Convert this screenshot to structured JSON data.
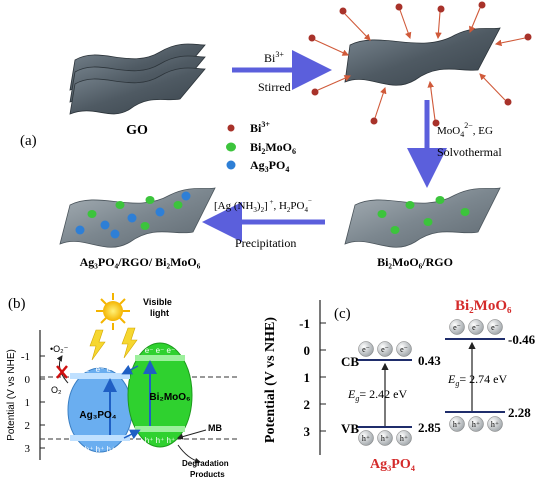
{
  "panel_a": {
    "label": "(a)",
    "go_label": "GO",
    "step1": {
      "reagent": "Bi",
      "reagent_sup": "3+",
      "condition": "Stirred"
    },
    "step2": {
      "reagent_a": "MoO",
      "reagent_a_sub": "4",
      "reagent_a_sup": "2−",
      "reagent_b": ", EG",
      "condition": "Solvothermal"
    },
    "step3": {
      "reagent": "[Ag (NH",
      "reagent_sub": "3",
      "reagent_b": ")",
      "reagent_b_sub": "2",
      "reagent_c": "]",
      "reagent_c_sup": " +",
      "reagent_d": ", H",
      "reagent_d_sub": "2",
      "reagent_e": "PO",
      "reagent_e_sub": "4",
      "reagent_e_sup": "−",
      "condition": "Precipitation"
    },
    "legend": [
      {
        "text": "Bi",
        "sup": "3+",
        "color": "#a8322a"
      },
      {
        "text": "Bi",
        "sub": "2",
        "text2": "MoO",
        "sub2": "6",
        "color": "#3cc43c"
      },
      {
        "text": "Ag",
        "sub": "3",
        "text2": "PO",
        "sub2": "4",
        "color": "#2e7fd6"
      }
    ],
    "product_bi2moo6_rgo": "Bi₂MoO₆/RGO",
    "product_final": "Ag₃PO₄/RGO/ Bi₂MoO₆"
  },
  "panel_b": {
    "label": "(b)",
    "y_axis_label": "Potential (V vs NHE)",
    "ticks": [
      "-1",
      "0",
      "1",
      "2",
      "3"
    ],
    "sun_label_1": "Visible",
    "sun_label_2": "light",
    "superoxide": "•O₂⁻",
    "o2": "O₂",
    "ag3po4": "Ag₃PO₄",
    "bi2moo6": "Bi₂MoO₆",
    "mb": "MB",
    "degradation_1": "Degradation",
    "degradation_2": "Products",
    "electrons": "e⁻ e⁻ e⁻",
    "holes": "h⁺ h⁺ h⁺",
    "colors": {
      "ag3po4": "#6aaef0",
      "bi2moo6": "#2fd12f",
      "arrow": "#1f5fc4"
    }
  },
  "panel_c": {
    "label": "(c)",
    "y_axis_label": "Potential (V vs NHE)",
    "ticks": [
      "-1",
      "0",
      "1",
      "2",
      "3"
    ],
    "cb_label": "CB",
    "vb_label": "VB",
    "ag3po4": {
      "name": "Ag₃PO₄",
      "cb": "0.43",
      "vb": "2.85",
      "eg_label": "E",
      "eg_sub": "g",
      "eg_value": "= 2.42 eV",
      "color": "#d42a2a"
    },
    "bi2moo6": {
      "name": "Bi₂MoO₆",
      "cb": "-0.46",
      "vb": "2.28",
      "eg_label": "E",
      "eg_sub": "g",
      "eg_value": "= 2.74 eV",
      "color": "#d42a2a"
    },
    "electron": "e⁻",
    "hole": "h⁺"
  }
}
